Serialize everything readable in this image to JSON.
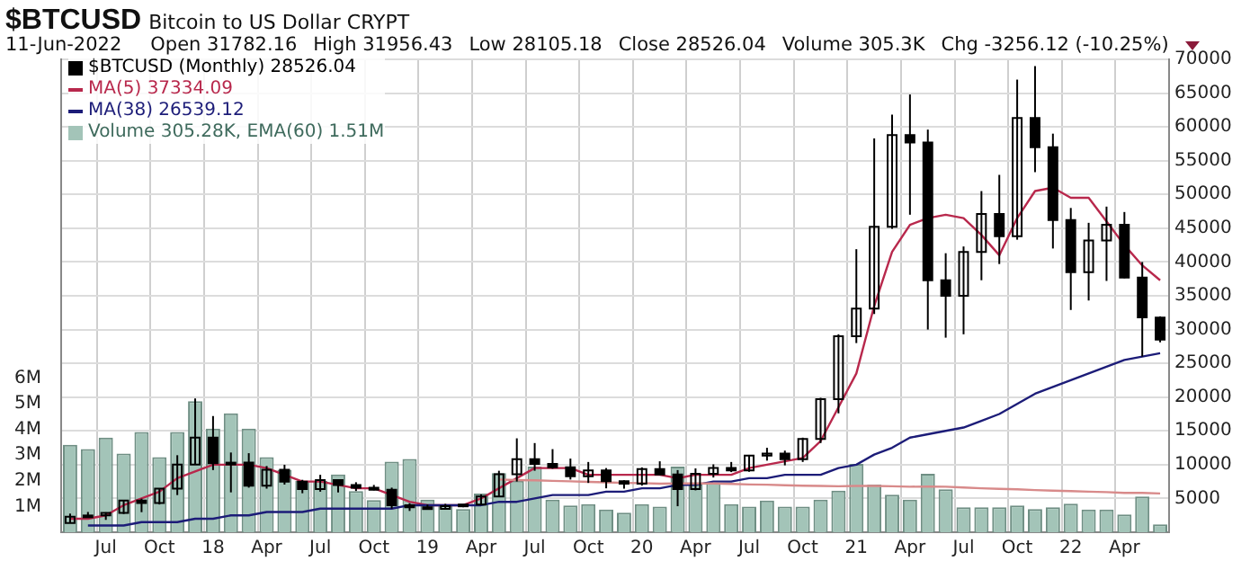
{
  "chart_data": {
    "type": "candlestick",
    "title": "$BTCUSD",
    "subtitle": "Bitcoin to US Dollar CRYPT",
    "annotations": [
      "11-Jun-2022",
      "Open 31782.16",
      "High 31956.43",
      "Low 28105.18",
      "Close 28526.04",
      "Volume 305.3K",
      "Chg -3256.12 (-10.25%)"
    ],
    "categories": [
      null,
      null,
      "Jul",
      null,
      null,
      "Oct",
      null,
      null,
      "18",
      null,
      null,
      "Apr",
      null,
      null,
      "Jul",
      null,
      null,
      "Oct",
      null,
      null,
      "19",
      null,
      null,
      "Apr",
      null,
      null,
      "Jul",
      null,
      null,
      "Oct",
      null,
      null,
      "20",
      null,
      null,
      "Apr",
      null,
      null,
      "Jul",
      null,
      null,
      "Oct",
      null,
      null,
      "21",
      null,
      null,
      "Apr",
      null,
      null,
      "Jul",
      null,
      null,
      "Oct",
      null,
      null,
      "22",
      null,
      null,
      "Apr",
      null,
      null
    ],
    "series": [
      {
        "name": "Volume 305.28K, EMA(60) 1.51M",
        "type": "bar",
        "axis": "y2",
        "color": "#a3c4b8",
        "values": [
          3400000,
          3240000,
          3680000,
          3060000,
          3900000,
          2920000,
          3900000,
          5100000,
          4030000,
          4630000,
          4030000,
          2920000,
          2430000,
          2000000,
          2000000,
          2250000,
          1600000,
          1250000,
          2750000,
          2850000,
          1270000,
          1040000,
          900000,
          1500000,
          2300000,
          2000000,
          2550000,
          1270000,
          1040000,
          1090000,
          880000,
          760000,
          1090000,
          1000000,
          2550000,
          1900000,
          1920000,
          1090000,
          1000000,
          1230000,
          1000000,
          1000000,
          1270000,
          1620000,
          2660000,
          1850000,
          1460000,
          1270000,
          2270000,
          1670000,
          970000,
          970000,
          970000,
          1040000,
          900000,
          970000,
          1110000,
          880000,
          880000,
          690000,
          1390000,
          310000
        ]
      },
      {
        "type": "line",
        "axis": "y2",
        "color": "#d88a8a",
        "values": [
          null,
          null,
          null,
          null,
          null,
          null,
          null,
          null,
          null,
          null,
          null,
          null,
          null,
          null,
          null,
          null,
          null,
          null,
          null,
          null,
          null,
          null,
          null,
          null,
          2050000,
          2030000,
          2020000,
          2000000,
          1980000,
          1960000,
          1940000,
          1920000,
          1910000,
          1890000,
          1900000,
          1900000,
          1900000,
          1880000,
          1860000,
          1850000,
          1830000,
          1810000,
          1800000,
          1790000,
          1800000,
          1800000,
          1790000,
          1770000,
          1780000,
          1770000,
          1740000,
          1710000,
          1690000,
          1670000,
          1640000,
          1620000,
          1600000,
          1580000,
          1560000,
          1530000,
          1530000,
          1510000
        ]
      },
      {
        "name": "MA(38) 26539.12",
        "type": "line",
        "color": "#1c1c78",
        "values": [
          null,
          1000,
          1000,
          1000,
          1500,
          1500,
          1500,
          2000,
          2000,
          2500,
          2500,
          3000,
          3000,
          3000,
          3500,
          3500,
          3500,
          3500,
          3500,
          4000,
          4000,
          4000,
          4000,
          4000,
          4500,
          4500,
          5000,
          5500,
          5500,
          5500,
          6000,
          6000,
          6500,
          6500,
          7000,
          7000,
          7500,
          7500,
          8000,
          8000,
          8500,
          8500,
          8500,
          9500,
          10000,
          11500,
          12500,
          14000,
          14500,
          15000,
          15500,
          16500,
          17500,
          19000,
          20500,
          21500,
          22500,
          23500,
          24500,
          25500,
          26000,
          26500
        ]
      },
      {
        "name": "MA(5) 37334.09",
        "type": "line",
        "color": "#b8284c",
        "values": [
          2000,
          2000,
          2500,
          4000,
          5000,
          6000,
          8000,
          9000,
          10000,
          10000,
          10000,
          9500,
          8500,
          7500,
          7500,
          7000,
          6500,
          6500,
          5500,
          4500,
          4000,
          4000,
          4000,
          5000,
          6500,
          8000,
          9500,
          9500,
          9500,
          8500,
          8500,
          8500,
          8500,
          8500,
          8000,
          8500,
          8500,
          8500,
          9500,
          10000,
          10500,
          11000,
          13500,
          18500,
          23500,
          33500,
          41500,
          45500,
          46500,
          47000,
          46500,
          44000,
          41000,
          46500,
          50500,
          51000,
          49500,
          49500,
          46000,
          42500,
          39500,
          37300
        ]
      },
      {
        "name": "$BTCUSD (Monthly) 28526.04",
        "color": "#000000",
        "ohlc": [
          [
            1350,
            2760,
            1350,
            2300
          ],
          [
            2300,
            3000,
            2200,
            2480
          ],
          [
            2480,
            2950,
            1830,
            2875
          ],
          [
            2875,
            4750,
            2700,
            4700
          ],
          [
            4700,
            4980,
            2970,
            4340
          ],
          [
            4340,
            6470,
            4110,
            6470
          ],
          [
            6470,
            11400,
            5500,
            10000
          ],
          [
            10000,
            19800,
            10000,
            14000
          ],
          [
            14000,
            17200,
            9200,
            10200
          ],
          [
            10200,
            11800,
            5900,
            10300
          ],
          [
            10300,
            11700,
            6600,
            6900
          ],
          [
            6900,
            9800,
            6450,
            9250
          ],
          [
            9250,
            9990,
            7050,
            7500
          ],
          [
            7500,
            7760,
            5770,
            6400
          ],
          [
            6400,
            8500,
            6000,
            7730
          ],
          [
            7730,
            7760,
            5880,
            7000
          ],
          [
            7000,
            7400,
            6100,
            6600
          ],
          [
            6600,
            7000,
            6200,
            6300
          ],
          [
            6300,
            6600,
            3500,
            4000
          ],
          [
            4000,
            4300,
            3150,
            3700
          ],
          [
            3700,
            4100,
            3400,
            3450
          ],
          [
            3450,
            4200,
            3400,
            3850
          ],
          [
            3850,
            4100,
            3700,
            4100
          ],
          [
            4100,
            5600,
            4100,
            5300
          ],
          [
            5300,
            9100,
            5300,
            8600
          ],
          [
            8600,
            13900,
            7500,
            10800
          ],
          [
            10800,
            13200,
            9100,
            10100
          ],
          [
            10100,
            12300,
            9400,
            9600
          ],
          [
            9600,
            10900,
            7800,
            8300
          ],
          [
            8300,
            10400,
            7300,
            9150
          ],
          [
            9150,
            9500,
            6500,
            7550
          ],
          [
            7550,
            7700,
            6450,
            7200
          ],
          [
            7200,
            9600,
            6900,
            9350
          ],
          [
            9350,
            10500,
            8450,
            8550
          ],
          [
            8550,
            9200,
            3850,
            6400
          ],
          [
            6400,
            9450,
            6200,
            8650
          ],
          [
            8650,
            10050,
            8100,
            9500
          ],
          [
            9500,
            10400,
            8900,
            9150
          ],
          [
            9150,
            11450,
            8950,
            11350
          ],
          [
            11350,
            12500,
            10600,
            11650
          ],
          [
            11650,
            12080,
            9900,
            10800
          ],
          [
            10800,
            14000,
            10400,
            13800
          ],
          [
            13800,
            19900,
            13200,
            19700
          ],
          [
            19700,
            29300,
            17600,
            29000
          ],
          [
            29000,
            41900,
            28000,
            33100
          ],
          [
            33100,
            58300,
            32300,
            45200
          ],
          [
            45200,
            61800,
            44900,
            58800
          ],
          [
            58800,
            64800,
            47000,
            57700
          ],
          [
            57700,
            59600,
            30000,
            37300
          ],
          [
            37300,
            41300,
            28800,
            35000
          ],
          [
            35000,
            42300,
            29300,
            41500
          ],
          [
            41500,
            50500,
            37300,
            47100
          ],
          [
            47100,
            52900,
            39700,
            43800
          ],
          [
            43800,
            67000,
            43300,
            61300
          ],
          [
            61300,
            69000,
            53300,
            57000
          ],
          [
            57000,
            59000,
            42000,
            46200
          ],
          [
            46200,
            48000,
            32900,
            38500
          ],
          [
            38500,
            45800,
            34300,
            43200
          ],
          [
            43200,
            48200,
            37200,
            45500
          ],
          [
            45500,
            47400,
            37600,
            37700
          ],
          [
            37700,
            40000,
            26000,
            31800
          ],
          [
            31782.16,
            31956.43,
            28105.18,
            28526.04
          ]
        ]
      }
    ],
    "ylim": [
      0,
      70000
    ],
    "yticks": [
      5000,
      10000,
      15000,
      20000,
      25000,
      30000,
      35000,
      40000,
      45000,
      50000,
      55000,
      60000,
      65000,
      70000
    ],
    "y2lim": [
      0,
      18400000
    ],
    "y2ticks": [
      {
        "value": 1000000,
        "label": "1M"
      },
      {
        "value": 2000000,
        "label": "2M"
      },
      {
        "value": 3000000,
        "label": "3M"
      },
      {
        "value": 4000000,
        "label": "4M"
      },
      {
        "value": 5000000,
        "label": "5M"
      },
      {
        "value": 6000000,
        "label": "6M"
      }
    ],
    "grid": true,
    "legend": "top left"
  }
}
